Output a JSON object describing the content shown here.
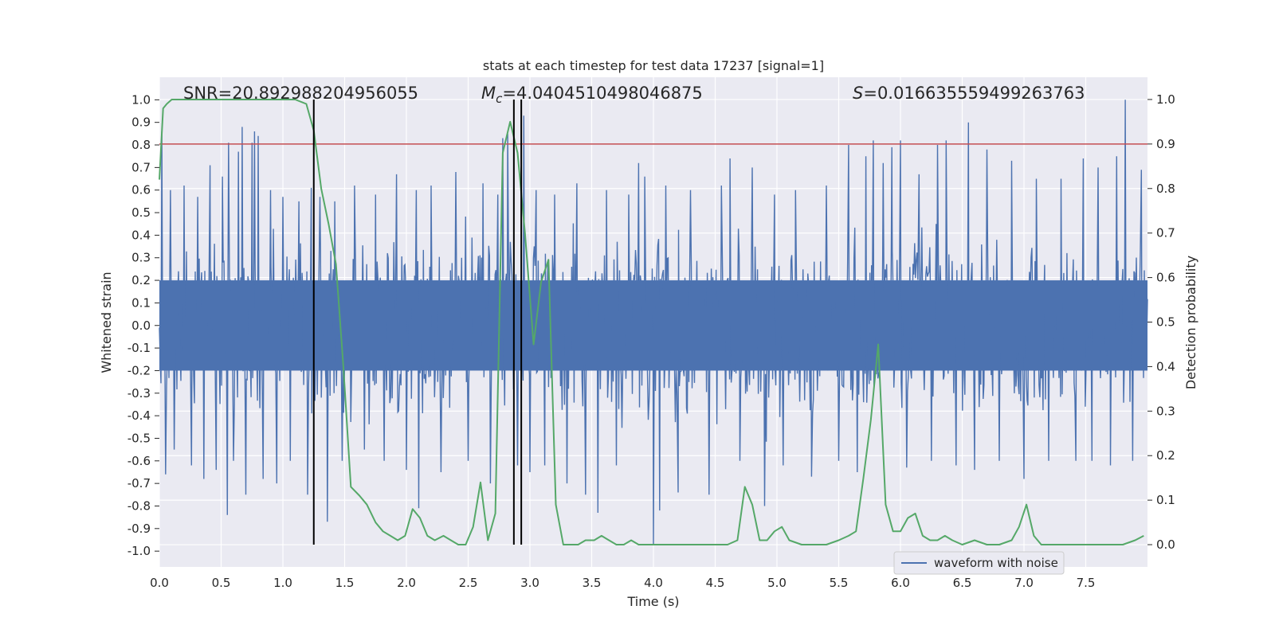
{
  "chart_data": {
    "type": "line",
    "title": "stats at each timestep for test data 17237 [signal=1]",
    "xlabel": "Time (s)",
    "ylabel_left": "Whitened strain",
    "ylabel_right": "Detection probability",
    "xlim": [
      0,
      8.0
    ],
    "ylim_left": [
      -1.07,
      1.1
    ],
    "ylim_right": [
      -0.05,
      1.05
    ],
    "x_ticks": [
      "0.0",
      "0.5",
      "1.0",
      "1.5",
      "2.0",
      "2.5",
      "3.0",
      "3.5",
      "4.0",
      "4.5",
      "5.0",
      "5.5",
      "6.0",
      "6.5",
      "7.0",
      "7.5"
    ],
    "y_left_ticks": [
      "-1.0",
      "-0.9",
      "-0.8",
      "-0.7",
      "-0.6",
      "-0.5",
      "-0.4",
      "-0.3",
      "-0.2",
      "-0.1",
      "0.0",
      "0.1",
      "0.2",
      "0.3",
      "0.4",
      "0.5",
      "0.6",
      "0.7",
      "0.8",
      "0.9",
      "1.0"
    ],
    "y_right_ticks": [
      "0.0",
      "0.1",
      "0.2",
      "0.3",
      "0.4",
      "0.5",
      "0.6",
      "0.7",
      "0.8",
      "0.9",
      "1.0"
    ],
    "grid": true,
    "legend": {
      "placement": "lower-right",
      "entries": [
        "waveform with noise"
      ]
    },
    "annotations": {
      "snr": "SNR=20.892988204956055",
      "mc_symbol": "M",
      "mc_sub": "c",
      "mc_value": "=4.0404510498046875",
      "s_symbol": "S",
      "s_value": "=0.016635559499263763"
    },
    "threshold": {
      "axis": "right",
      "value": 0.9,
      "color": "#c44e52"
    },
    "vertical_markers": [
      1.25,
      2.87,
      2.93
    ],
    "waveform": {
      "name": "waveform with noise",
      "color": "#4c72b0",
      "axis": "left",
      "typical_envelope": 0.4,
      "spikes": [
        {
          "x": 0.02,
          "y": 0.86
        },
        {
          "x": 0.05,
          "y": -0.66
        },
        {
          "x": 0.09,
          "y": 0.6
        },
        {
          "x": 0.12,
          "y": -0.55
        },
        {
          "x": 0.2,
          "y": 0.62
        },
        {
          "x": 0.26,
          "y": -0.62
        },
        {
          "x": 0.31,
          "y": 0.57
        },
        {
          "x": 0.36,
          "y": -0.68
        },
        {
          "x": 0.41,
          "y": 0.71
        },
        {
          "x": 0.46,
          "y": -0.64
        },
        {
          "x": 0.51,
          "y": 0.66
        },
        {
          "x": 0.55,
          "y": -0.84
        },
        {
          "x": 0.56,
          "y": 0.81
        },
        {
          "x": 0.6,
          "y": -0.6
        },
        {
          "x": 0.64,
          "y": 0.77
        },
        {
          "x": 0.67,
          "y": 0.88
        },
        {
          "x": 0.7,
          "y": -0.75
        },
        {
          "x": 0.75,
          "y": 0.81
        },
        {
          "x": 0.77,
          "y": 0.86
        },
        {
          "x": 0.8,
          "y": 0.84
        },
        {
          "x": 0.84,
          "y": -0.68
        },
        {
          "x": 0.9,
          "y": 0.6
        },
        {
          "x": 0.95,
          "y": -0.7
        },
        {
          "x": 1.0,
          "y": 0.57
        },
        {
          "x": 1.06,
          "y": -0.6
        },
        {
          "x": 1.13,
          "y": 0.55
        },
        {
          "x": 1.2,
          "y": -0.75
        },
        {
          "x": 1.23,
          "y": 0.61
        },
        {
          "x": 1.3,
          "y": 0.57
        },
        {
          "x": 1.36,
          "y": -0.87
        },
        {
          "x": 1.42,
          "y": 0.55
        },
        {
          "x": 1.48,
          "y": -0.6
        },
        {
          "x": 1.58,
          "y": 0.62
        },
        {
          "x": 1.66,
          "y": -0.55
        },
        {
          "x": 1.75,
          "y": 0.58
        },
        {
          "x": 1.82,
          "y": -0.6
        },
        {
          "x": 1.92,
          "y": 0.67
        },
        {
          "x": 2.0,
          "y": -0.64
        },
        {
          "x": 2.08,
          "y": 0.6
        },
        {
          "x": 2.1,
          "y": -0.81
        },
        {
          "x": 2.2,
          "y": 0.62
        },
        {
          "x": 2.28,
          "y": -0.65
        },
        {
          "x": 2.4,
          "y": 0.68
        },
        {
          "x": 2.5,
          "y": -0.6
        },
        {
          "x": 2.62,
          "y": 0.63
        },
        {
          "x": 2.68,
          "y": -0.7
        },
        {
          "x": 2.74,
          "y": 0.58
        },
        {
          "x": 2.78,
          "y": 0.83
        },
        {
          "x": 2.82,
          "y": 0.85
        },
        {
          "x": 2.9,
          "y": -0.62
        },
        {
          "x": 2.95,
          "y": 0.93
        },
        {
          "x": 3.0,
          "y": -0.65
        },
        {
          "x": 3.05,
          "y": 0.6
        },
        {
          "x": 3.12,
          "y": -0.62
        },
        {
          "x": 3.2,
          "y": 0.58
        },
        {
          "x": 3.3,
          "y": -0.7
        },
        {
          "x": 3.38,
          "y": 0.63
        },
        {
          "x": 3.45,
          "y": -0.75
        },
        {
          "x": 3.55,
          "y": -0.83
        },
        {
          "x": 3.62,
          "y": 0.6
        },
        {
          "x": 3.7,
          "y": -0.62
        },
        {
          "x": 3.8,
          "y": 0.58
        },
        {
          "x": 3.88,
          "y": 0.72
        },
        {
          "x": 3.93,
          "y": 0.66
        },
        {
          "x": 4.0,
          "y": -0.97
        },
        {
          "x": 4.05,
          "y": -0.82
        },
        {
          "x": 4.1,
          "y": 0.62
        },
        {
          "x": 4.2,
          "y": -0.74
        },
        {
          "x": 4.3,
          "y": 0.6
        },
        {
          "x": 4.45,
          "y": -0.75
        },
        {
          "x": 4.55,
          "y": 0.62
        },
        {
          "x": 4.62,
          "y": 0.74
        },
        {
          "x": 4.7,
          "y": -0.6
        },
        {
          "x": 4.8,
          "y": 0.7
        },
        {
          "x": 4.9,
          "y": -0.8
        },
        {
          "x": 4.98,
          "y": 0.58
        },
        {
          "x": 5.05,
          "y": -0.62
        },
        {
          "x": 5.15,
          "y": 0.6
        },
        {
          "x": 5.28,
          "y": -0.67
        },
        {
          "x": 5.4,
          "y": 0.62
        },
        {
          "x": 5.5,
          "y": -0.6
        },
        {
          "x": 5.58,
          "y": 0.8
        },
        {
          "x": 5.65,
          "y": -0.65
        },
        {
          "x": 5.72,
          "y": 0.75
        },
        {
          "x": 5.78,
          "y": 0.82
        },
        {
          "x": 5.86,
          "y": 0.72
        },
        {
          "x": 5.93,
          "y": 0.79
        },
        {
          "x": 6.0,
          "y": 0.82
        },
        {
          "x": 6.05,
          "y": -0.63
        },
        {
          "x": 6.15,
          "y": 0.67
        },
        {
          "x": 6.25,
          "y": -0.6
        },
        {
          "x": 6.3,
          "y": 0.8
        },
        {
          "x": 6.37,
          "y": 0.82
        },
        {
          "x": 6.45,
          "y": -0.62
        },
        {
          "x": 6.55,
          "y": 0.9
        },
        {
          "x": 6.6,
          "y": -0.64
        },
        {
          "x": 6.7,
          "y": 0.78
        },
        {
          "x": 6.8,
          "y": -0.6
        },
        {
          "x": 6.9,
          "y": 0.73
        },
        {
          "x": 7.0,
          "y": -0.68
        },
        {
          "x": 7.1,
          "y": 0.65
        },
        {
          "x": 7.2,
          "y": -0.6
        },
        {
          "x": 7.3,
          "y": 0.65
        },
        {
          "x": 7.42,
          "y": -0.6
        },
        {
          "x": 7.48,
          "y": 0.74
        },
        {
          "x": 7.55,
          "y": -0.6
        },
        {
          "x": 7.6,
          "y": 0.7
        },
        {
          "x": 7.7,
          "y": -0.62
        },
        {
          "x": 7.75,
          "y": 0.75
        },
        {
          "x": 7.82,
          "y": 1.0
        },
        {
          "x": 7.88,
          "y": -0.6
        },
        {
          "x": 7.95,
          "y": 0.69
        }
      ]
    },
    "probability": {
      "name": "detection probability",
      "color": "#55a868",
      "axis": "right",
      "x": [
        0.0,
        0.03,
        0.06,
        0.1,
        0.2,
        0.4,
        0.6,
        0.8,
        1.0,
        1.1,
        1.19,
        1.25,
        1.31,
        1.37,
        1.43,
        1.49,
        1.55,
        1.62,
        1.68,
        1.75,
        1.81,
        1.87,
        1.93,
        1.99,
        2.05,
        2.11,
        2.17,
        2.23,
        2.3,
        2.36,
        2.42,
        2.48,
        2.54,
        2.6,
        2.66,
        2.72,
        2.78,
        2.84,
        2.9,
        2.96,
        3.03,
        3.09,
        3.15,
        3.21,
        3.27,
        3.33,
        3.39,
        3.45,
        3.52,
        3.58,
        3.64,
        3.7,
        3.76,
        3.82,
        3.88,
        3.94,
        4.0,
        4.06,
        4.12,
        4.18,
        4.3,
        4.45,
        4.6,
        4.68,
        4.74,
        4.8,
        4.86,
        4.92,
        4.98,
        5.04,
        5.1,
        5.2,
        5.3,
        5.4,
        5.5,
        5.58,
        5.64,
        5.7,
        5.76,
        5.82,
        5.88,
        5.94,
        6.0,
        6.06,
        6.12,
        6.18,
        6.24,
        6.3,
        6.36,
        6.42,
        6.5,
        6.6,
        6.7,
        6.8,
        6.9,
        6.96,
        7.02,
        7.08,
        7.14,
        7.2,
        7.3,
        7.4,
        7.5,
        7.6,
        7.7,
        7.8,
        7.9,
        7.97
      ],
      "y": [
        0.82,
        0.98,
        0.99,
        1.0,
        1.0,
        1.0,
        1.0,
        1.0,
        1.0,
        1.0,
        0.99,
        0.93,
        0.8,
        0.72,
        0.63,
        0.4,
        0.13,
        0.11,
        0.09,
        0.05,
        0.03,
        0.02,
        0.01,
        0.02,
        0.08,
        0.06,
        0.02,
        0.01,
        0.02,
        0.01,
        0.0,
        0.0,
        0.04,
        0.14,
        0.01,
        0.07,
        0.88,
        0.95,
        0.88,
        0.7,
        0.45,
        0.59,
        0.64,
        0.09,
        0.0,
        0.0,
        0.0,
        0.01,
        0.01,
        0.02,
        0.01,
        0.0,
        0.0,
        0.01,
        0.0,
        0.0,
        0.0,
        0.0,
        0.0,
        0.0,
        0.0,
        0.0,
        0.0,
        0.01,
        0.13,
        0.09,
        0.01,
        0.01,
        0.03,
        0.04,
        0.01,
        0.0,
        0.0,
        0.0,
        0.01,
        0.02,
        0.03,
        0.15,
        0.28,
        0.45,
        0.09,
        0.03,
        0.03,
        0.06,
        0.07,
        0.02,
        0.01,
        0.01,
        0.02,
        0.01,
        0.0,
        0.01,
        0.0,
        0.0,
        0.01,
        0.04,
        0.09,
        0.02,
        0.0,
        0.0,
        0.0,
        0.0,
        0.0,
        0.0,
        0.0,
        0.0,
        0.01,
        0.02
      ]
    }
  }
}
